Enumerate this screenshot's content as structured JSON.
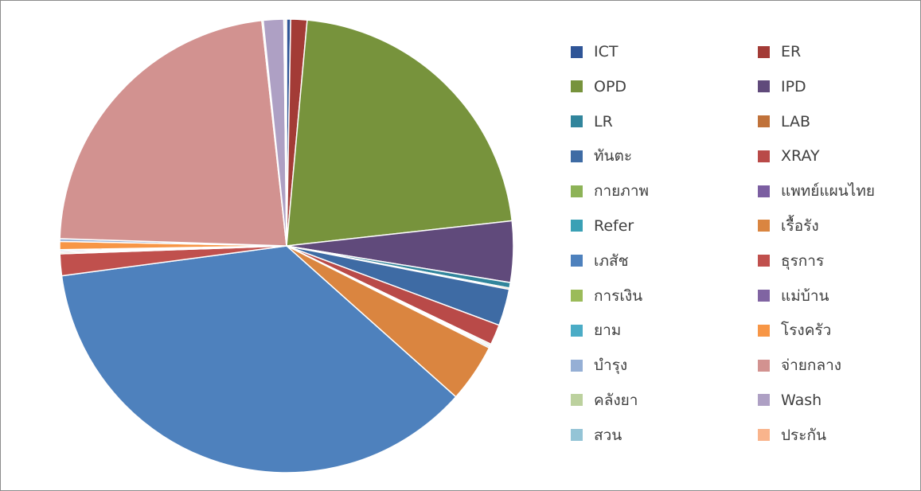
{
  "chart_data": {
    "type": "pie",
    "title": "",
    "legend_position": "right",
    "slices": [
      {
        "label": "ICT",
        "value": 0.3,
        "color": "#2F5597"
      },
      {
        "label": "ER",
        "value": 1.2,
        "color": "#A33B36"
      },
      {
        "label": "OPD",
        "value": 22.5,
        "color": "#77933C"
      },
      {
        "label": "IPD",
        "value": 4.5,
        "color": "#604A7B"
      },
      {
        "label": "LR",
        "value": 0.4,
        "color": "#31859C"
      },
      {
        "label": "LAB",
        "value": 0.1,
        "color": "#C0723A"
      },
      {
        "label": "ทันตะ",
        "value": 2.7,
        "color": "#3E6BA4"
      },
      {
        "label": "XRAY",
        "value": 1.5,
        "color": "#B94A48"
      },
      {
        "label": "กายภาพ",
        "value": 0.1,
        "color": "#8DB357"
      },
      {
        "label": "แพทย์แผนไทย",
        "value": 0.1,
        "color": "#7B5EA1"
      },
      {
        "label": "Refer",
        "value": 0.1,
        "color": "#3AA0B5"
      },
      {
        "label": "เรื้อรัง",
        "value": 4.3,
        "color": "#DA8540"
      },
      {
        "label": "เภสัช",
        "value": 37.5,
        "color": "#4E81BD"
      },
      {
        "label": "ธุรการ",
        "value": 1.6,
        "color": "#C0504D"
      },
      {
        "label": "การเงิน",
        "value": 0.1,
        "color": "#9BBB59"
      },
      {
        "label": "แม่บ้าน",
        "value": 0.1,
        "color": "#8064A2"
      },
      {
        "label": "ยาม",
        "value": 0.1,
        "color": "#4BACC6"
      },
      {
        "label": "โรงครัว",
        "value": 0.6,
        "color": "#F79646"
      },
      {
        "label": "บำรุง",
        "value": 0.2,
        "color": "#95AFD5"
      },
      {
        "label": "จ่ายกลาง",
        "value": 23.5,
        "color": "#D29290"
      },
      {
        "label": "คลังยา",
        "value": 0.1,
        "color": "#BCD19E"
      },
      {
        "label": "Wash",
        "value": 1.5,
        "color": "#AEA0C4"
      },
      {
        "label": "สวน",
        "value": 0.1,
        "color": "#94C4D6"
      },
      {
        "label": "ประกัน",
        "value": 0.1,
        "color": "#F9B48C"
      }
    ]
  }
}
